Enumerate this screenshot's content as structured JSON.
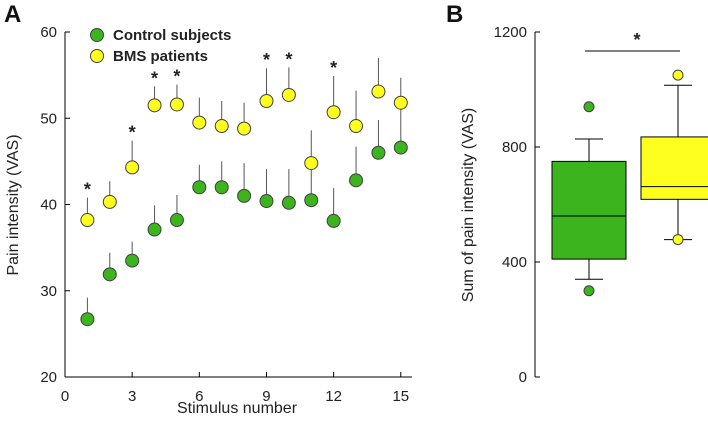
{
  "colors": {
    "control": "#3cb41e",
    "bms": "#ffff1e",
    "outline": "#404040",
    "axis": "#000000"
  },
  "panels": {
    "a": "A",
    "b": "B"
  },
  "chart_data": [
    {
      "id": "A",
      "type": "scatter",
      "xlabel": "Stimulus number",
      "ylabel": "Pain intensity (VAS)",
      "xlim": [
        0,
        15.5
      ],
      "ylim": [
        20,
        60
      ],
      "xticks": [
        "0",
        "3",
        "6",
        "9",
        "12",
        "15"
      ],
      "yticks": [
        "20",
        "30",
        "40",
        "50",
        "60"
      ],
      "x": [
        1,
        2,
        3,
        4,
        5,
        6,
        7,
        8,
        9,
        10,
        11,
        12,
        13,
        14,
        15
      ],
      "series": [
        {
          "name": "Control subjects",
          "color": "#3cb41e",
          "values": [
            26.7,
            31.9,
            33.5,
            37.1,
            38.2,
            42.0,
            42.0,
            41.0,
            40.4,
            40.2,
            40.5,
            38.1,
            42.8,
            46.0,
            46.6
          ],
          "error": [
            2.5,
            2.5,
            2.2,
            2.8,
            2.9,
            2.6,
            3.0,
            3.8,
            3.7,
            3.9,
            3.5,
            3.8,
            3.9,
            3.8,
            4.7
          ]
        },
        {
          "name": "BMS patients",
          "color": "#ffff1e",
          "values": [
            38.2,
            40.3,
            44.3,
            51.5,
            51.6,
            49.5,
            49.1,
            48.8,
            52.0,
            52.7,
            44.8,
            50.7,
            49.1,
            53.1,
            51.8
          ],
          "error": [
            2.6,
            2.4,
            3.1,
            2.2,
            2.3,
            2.9,
            2.9,
            3.0,
            3.8,
            3.2,
            3.8,
            4.2,
            4.1,
            3.9,
            2.9
          ]
        }
      ],
      "significance": {
        "marker": "*",
        "x": [
          1,
          3,
          4,
          5,
          9,
          10,
          12
        ]
      }
    },
    {
      "id": "B",
      "type": "box",
      "ylabel": "Sum of pain intensity (VAS)",
      "ylim": [
        0,
        1200
      ],
      "yticks": [
        "0",
        "400",
        "800",
        "1200"
      ],
      "boxes": [
        {
          "name": "Control subjects",
          "color": "#3cb41e",
          "min": 340,
          "q1": 410,
          "median": 560,
          "q3": 750,
          "max": 828,
          "outliers": [
            300,
            940
          ]
        },
        {
          "name": "BMS patients",
          "color": "#ffff1e",
          "min": 478,
          "q1": 618,
          "median": 662,
          "q3": 835,
          "max": 1015,
          "outliers": [
            478,
            1050
          ]
        }
      ],
      "significance": "*"
    }
  ]
}
